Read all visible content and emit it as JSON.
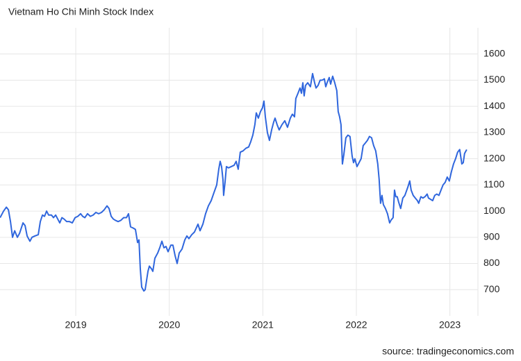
{
  "chart_data": {
    "type": "line",
    "title": "Vietnam Ho Chi Minh Stock Index",
    "source": "source: tradingeconomics.com",
    "color": "#2f66dd",
    "grid": true,
    "xlim": [
      2018.19,
      2023.3
    ],
    "xticks": [
      2019,
      2020,
      2021,
      2022,
      2023
    ],
    "ylim": [
      600,
      1700
    ],
    "yticks": [
      700,
      800,
      900,
      1000,
      1100,
      1200,
      1300,
      1400,
      1500,
      1600
    ],
    "x": [
      2018.191,
      2018.228,
      2018.258,
      2018.28,
      2018.302,
      2018.324,
      2018.347,
      2018.376,
      2018.399,
      2018.436,
      2018.458,
      2018.48,
      2018.51,
      2018.532,
      2018.562,
      2018.599,
      2018.621,
      2018.644,
      2018.666,
      2018.688,
      2018.71,
      2018.74,
      2018.762,
      2018.785,
      2018.807,
      2018.829,
      2018.852,
      2018.874,
      2018.903,
      2018.933,
      2018.963,
      2018.993,
      2019.022,
      2019.052,
      2019.074,
      2019.097,
      2019.126,
      2019.156,
      2019.186,
      2019.215,
      2019.245,
      2019.275,
      2019.304,
      2019.334,
      2019.356,
      2019.379,
      2019.401,
      2019.423,
      2019.453,
      2019.483,
      2019.512,
      2019.542,
      2019.564,
      2019.586,
      2019.616,
      2019.638,
      2019.661,
      2019.676,
      2019.69,
      2019.705,
      2019.728,
      2019.742,
      2019.772,
      2019.787,
      2019.809,
      2019.824,
      2019.846,
      2019.876,
      2019.898,
      2019.921,
      2019.943,
      2019.965,
      2019.987,
      2020.017,
      2020.039,
      2020.062,
      2020.084,
      2020.106,
      2020.136,
      2020.166,
      2020.188,
      2020.21,
      2020.24,
      2020.269,
      2020.307,
      2020.329,
      2020.359,
      2020.388,
      2020.418,
      2020.448,
      2020.477,
      2020.507,
      2020.529,
      2020.544,
      2020.559,
      2020.574,
      2020.581,
      2020.596,
      2020.611,
      2020.633,
      2020.663,
      2020.693,
      2020.715,
      2020.737,
      2020.759,
      2020.789,
      2020.819,
      2020.849,
      2020.871,
      2020.893,
      2020.915,
      2020.93,
      2020.952,
      2020.975,
      2020.997,
      2021.012,
      2021.027,
      2021.049,
      2021.071,
      2021.094,
      2021.116,
      2021.131,
      2021.153,
      2021.175,
      2021.205,
      2021.235,
      2021.264,
      2021.294,
      2021.316,
      2021.339,
      2021.353,
      2021.376,
      2021.398,
      2021.413,
      2021.428,
      2021.442,
      2021.457,
      2021.48,
      2021.509,
      2021.532,
      2021.554,
      2021.569,
      2021.591,
      2021.613,
      2021.635,
      2021.658,
      2021.673,
      2021.687,
      2021.71,
      2021.725,
      2021.747,
      2021.769,
      2021.791,
      2021.806,
      2021.821,
      2021.836,
      2021.851,
      2021.866,
      2021.888,
      2021.91,
      2021.932,
      2021.955,
      2021.97,
      2021.984,
      2022.007,
      2022.029,
      2022.051,
      2022.073,
      2022.096,
      2022.118,
      2022.14,
      2022.163,
      2022.185,
      2022.207,
      2022.229,
      2022.244,
      2022.259,
      2022.274,
      2022.289,
      2022.311,
      2022.333,
      2022.356,
      2022.37,
      2022.393,
      2022.408,
      2022.422,
      2022.437,
      2022.452,
      2022.474,
      2022.497,
      2022.519,
      2022.549,
      2022.571,
      2022.586,
      2022.608,
      2022.63,
      2022.653,
      2022.667,
      2022.69,
      2022.712,
      2022.734,
      2022.757,
      2022.771,
      2022.794,
      2022.816,
      2022.838,
      2022.86,
      2022.883,
      2022.905,
      2022.927,
      2022.95,
      2022.972,
      2022.994,
      2023.016,
      2023.039,
      2023.061,
      2023.083,
      2023.105,
      2023.128,
      2023.143,
      2023.157,
      2023.18
    ],
    "values": [
      975,
      1000,
      1015,
      1005,
      960,
      900,
      925,
      900,
      915,
      955,
      945,
      905,
      885,
      900,
      905,
      910,
      960,
      985,
      980,
      1000,
      985,
      985,
      975,
      985,
      970,
      955,
      975,
      970,
      960,
      960,
      955,
      975,
      980,
      990,
      980,
      975,
      990,
      980,
      985,
      995,
      990,
      995,
      1005,
      1020,
      1010,
      980,
      970,
      965,
      960,
      965,
      975,
      975,
      990,
      940,
      935,
      930,
      880,
      890,
      780,
      710,
      695,
      700,
      770,
      790,
      780,
      770,
      820,
      840,
      860,
      885,
      860,
      865,
      845,
      870,
      870,
      830,
      800,
      840,
      855,
      890,
      905,
      895,
      910,
      920,
      950,
      925,
      950,
      990,
      1020,
      1040,
      1070,
      1100,
      1160,
      1190,
      1170,
      1120,
      1060,
      1110,
      1170,
      1165,
      1170,
      1175,
      1190,
      1160,
      1225,
      1230,
      1240,
      1245,
      1265,
      1290,
      1330,
      1375,
      1355,
      1380,
      1395,
      1420,
      1360,
      1300,
      1270,
      1310,
      1340,
      1355,
      1330,
      1310,
      1330,
      1345,
      1320,
      1355,
      1370,
      1360,
      1430,
      1450,
      1470,
      1450,
      1490,
      1440,
      1480,
      1490,
      1475,
      1525,
      1490,
      1470,
      1480,
      1500,
      1500,
      1505,
      1475,
      1490,
      1510,
      1485,
      1515,
      1490,
      1460,
      1380,
      1360,
      1330,
      1180,
      1215,
      1280,
      1290,
      1285,
      1210,
      1185,
      1200,
      1170,
      1185,
      1200,
      1250,
      1260,
      1270,
      1285,
      1280,
      1250,
      1230,
      1180,
      1120,
      1030,
      1060,
      1025,
      1010,
      990,
      955,
      965,
      975,
      1080,
      1055,
      1055,
      1035,
      1010,
      1050,
      1060,
      1090,
      1115,
      1080,
      1060,
      1050,
      1040,
      1030,
      1055,
      1050,
      1055,
      1065,
      1050,
      1045,
      1040,
      1060,
      1065,
      1060,
      1080,
      1100,
      1110,
      1130,
      1115,
      1150,
      1180,
      1200,
      1225,
      1235,
      1180,
      1185,
      1220,
      1235
    ]
  }
}
